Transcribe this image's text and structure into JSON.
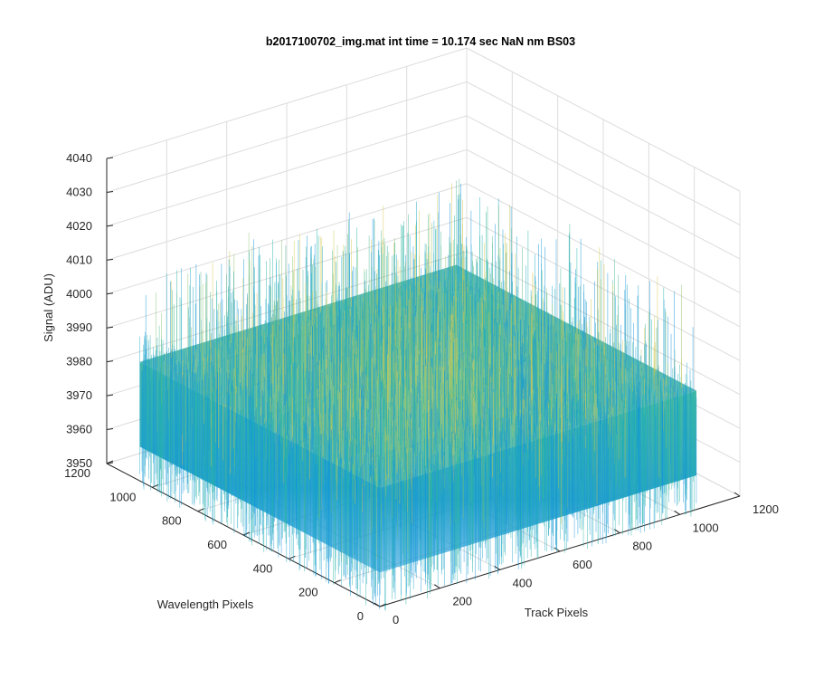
{
  "chart_data": {
    "type": "surface",
    "title": "b2017100702_img.mat int time = 10.174 sec  NaN nm BS03",
    "xlabel": "Track Pixels",
    "ylabel": "Wavelength Pixels",
    "zlabel": "Signal (ADU)",
    "xlim": [
      0,
      1200
    ],
    "ylim": [
      0,
      1200
    ],
    "zlim": [
      3950,
      4040
    ],
    "x_ticks": [
      "0",
      "200",
      "400",
      "600",
      "800",
      "1000",
      "1200"
    ],
    "y_ticks": [
      "0",
      "200",
      "400",
      "600",
      "800",
      "1000",
      "1200"
    ],
    "z_ticks": [
      "3950",
      "3960",
      "3970",
      "3980",
      "3990",
      "4000",
      "4010",
      "4020",
      "4030",
      "4040"
    ],
    "grid": true,
    "colormap": "parula",
    "surface": {
      "x_range": [
        1,
        1056
      ],
      "y_range": [
        1,
        1056
      ],
      "mean_signal": 3985,
      "typical_min": 3960,
      "typical_max": 4010
    },
    "colors": {
      "low": "#0a8fd6",
      "mid": "#1db6a7",
      "high": "#c9c44a"
    }
  }
}
